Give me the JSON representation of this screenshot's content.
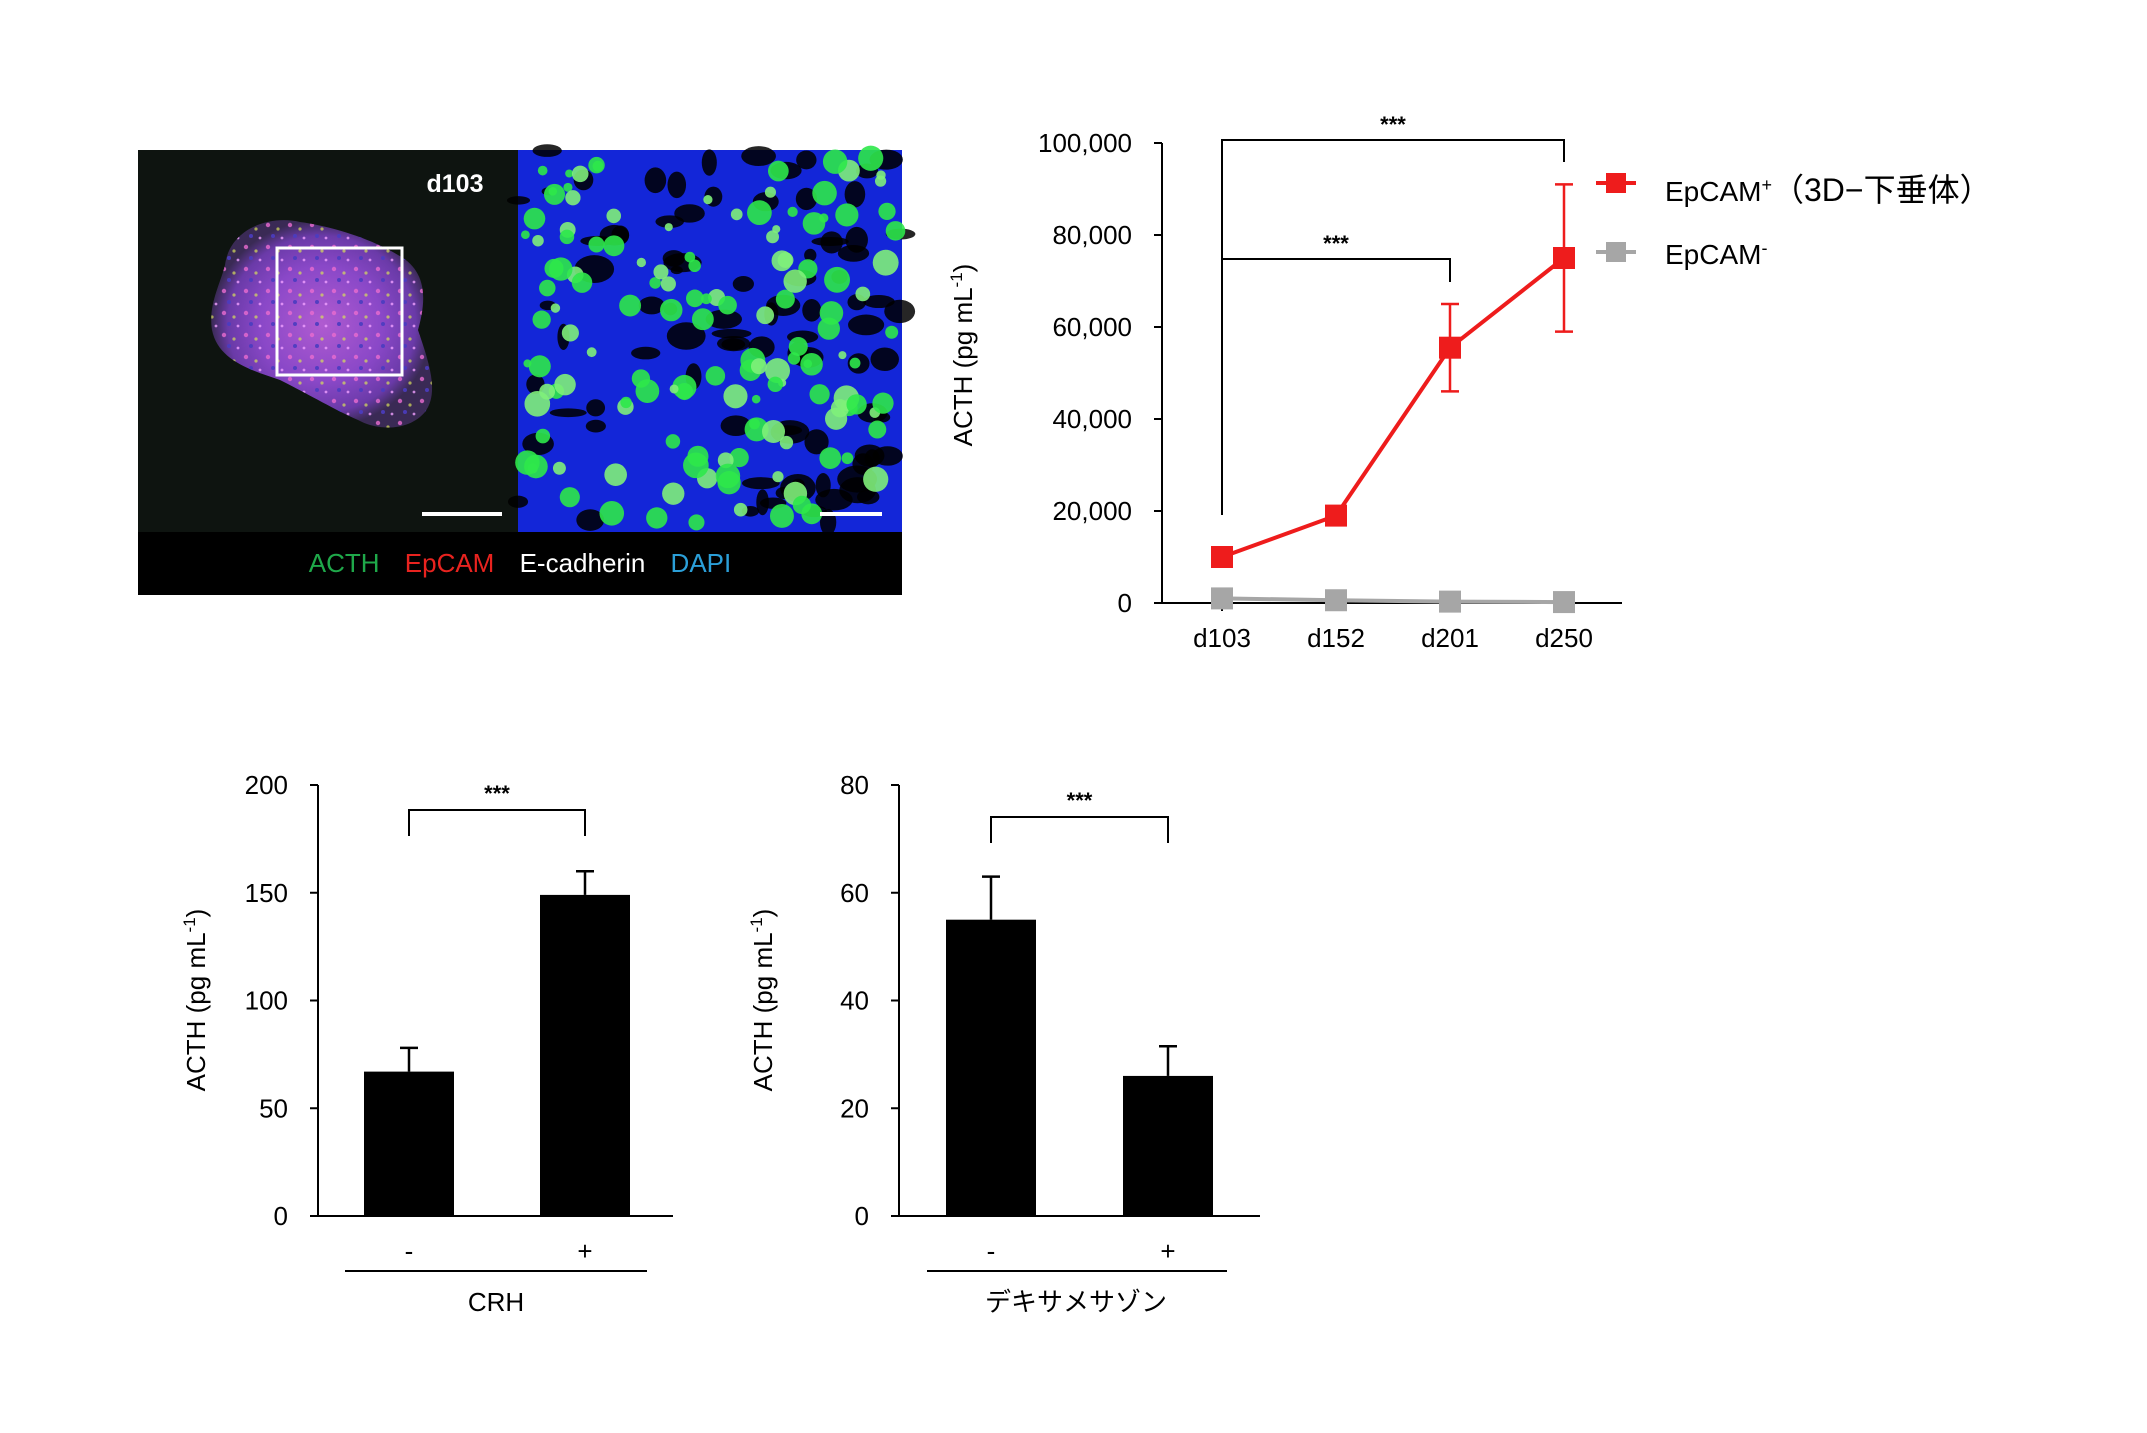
{
  "micrograph": {
    "label": "d103",
    "legend": [
      {
        "text": "ACTH",
        "color": "#1fa84a"
      },
      {
        "text": "EpCAM",
        "color": "#e8231f"
      },
      {
        "text": "E-cadherin",
        "color": "#ffffff"
      },
      {
        "text": "DAPI",
        "color": "#2b9fd8"
      }
    ]
  },
  "chart_data": [
    {
      "type": "line",
      "ylabel": "ACTH (pg mL-1)",
      "ylabel_base": "ACTH (pg mL",
      "ylabel_sup": "-1",
      "ylabel_close": ")",
      "ylim": [
        0,
        100000
      ],
      "yticks": [
        "0",
        "20,000",
        "40,000",
        "60,000",
        "80,000",
        "100,000"
      ],
      "categories": [
        "d103",
        "d152",
        "d201",
        "d250"
      ],
      "series": [
        {
          "name": "EpCAM+ （3D−下垂体）",
          "name_base": "EpCAM",
          "name_sup": "+",
          "name_suffix": "（3D−下垂体）",
          "color": "#ee1c1c",
          "values": [
            10000,
            19000,
            55500,
            75000
          ],
          "errors": [
            0,
            0,
            9500,
            16000
          ]
        },
        {
          "name": "EpCAM-",
          "name_base": "EpCAM",
          "name_sup": "-",
          "name_suffix": "",
          "color": "#a6a6a6",
          "values": [
            1000,
            600,
            300,
            200
          ],
          "errors": [
            0,
            0,
            0,
            0
          ]
        }
      ],
      "significance": [
        {
          "from": "d103",
          "to": "d201",
          "label": "***"
        },
        {
          "from": "d103",
          "to": "d250",
          "label": "***"
        }
      ],
      "legend_position": "right"
    },
    {
      "type": "bar",
      "ylabel": "ACTH (pg mL-1)",
      "ylabel_base": "ACTH (pg mL",
      "ylabel_sup": "-1",
      "ylabel_close": ")",
      "ylim": [
        0,
        200
      ],
      "yticks": [
        "0",
        "50",
        "100",
        "150",
        "200"
      ],
      "categories": [
        "-",
        "+"
      ],
      "values": [
        67,
        149
      ],
      "errors": [
        11,
        11
      ],
      "xlabel": "CRH",
      "significance": {
        "label": "***"
      },
      "color": "#000000"
    },
    {
      "type": "bar",
      "ylabel": "ACTH (pg mL-1)",
      "ylabel_base": "ACTH (pg mL",
      "ylabel_sup": "-1",
      "ylabel_close": ")",
      "ylim": [
        0,
        80
      ],
      "yticks": [
        "0",
        "20",
        "40",
        "60",
        "80"
      ],
      "categories": [
        "-",
        "+"
      ],
      "values": [
        55,
        26
      ],
      "errors": [
        8,
        5.5
      ],
      "xlabel": "デキサメサゾン",
      "significance": {
        "label": "***"
      },
      "color": "#000000"
    }
  ]
}
